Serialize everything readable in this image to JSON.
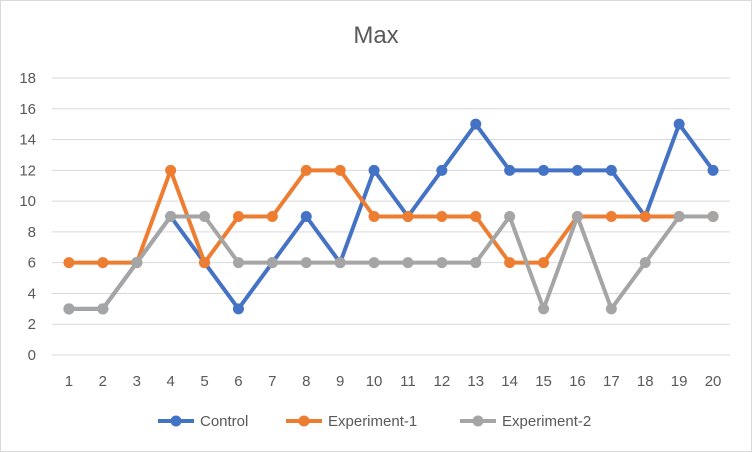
{
  "chart_data": {
    "type": "line",
    "title": "Max",
    "xlabel": "",
    "ylabel": "",
    "categories": [
      "1",
      "2",
      "3",
      "4",
      "5",
      "6",
      "7",
      "8",
      "9",
      "10",
      "11",
      "12",
      "13",
      "14",
      "15",
      "16",
      "17",
      "18",
      "19",
      "20"
    ],
    "ylim": [
      0,
      18
    ],
    "yticks": [
      "0",
      "2",
      "4",
      "6",
      "8",
      "10",
      "12",
      "14",
      "16",
      "18"
    ],
    "grid": true,
    "legend_position": "bottom",
    "series": [
      {
        "name": "Control",
        "color": "#4472C4",
        "values": [
          3,
          3,
          6,
          9,
          6,
          3,
          6,
          9,
          6,
          12,
          9,
          12,
          15,
          12,
          12,
          12,
          12,
          9,
          15,
          12
        ]
      },
      {
        "name": "Experiment-1",
        "color": "#ED7D31",
        "values": [
          6,
          6,
          6,
          12,
          6,
          9,
          9,
          12,
          12,
          9,
          9,
          9,
          9,
          6,
          6,
          9,
          9,
          9,
          9,
          9
        ]
      },
      {
        "name": "Experiment-2",
        "color": "#A5A5A5",
        "values": [
          3,
          3,
          6,
          9,
          9,
          6,
          6,
          6,
          6,
          6,
          6,
          6,
          6,
          9,
          3,
          9,
          3,
          6,
          9,
          9
        ]
      }
    ]
  }
}
